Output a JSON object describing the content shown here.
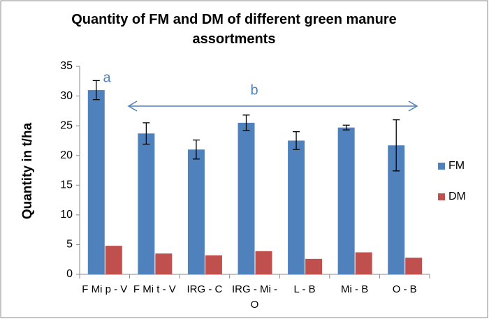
{
  "chart_data": {
    "type": "bar",
    "title": "Quantity of FM and DM of different green manure assortments",
    "ylabel": "Quantity in t/ha",
    "categories": [
      "F Mi p - V",
      "F Mi t - V",
      "IRG - C",
      "IRG - Mi - O",
      "L - B",
      "Mi - B",
      "O - B"
    ],
    "series": [
      {
        "name": "FM",
        "color": "#4f81bd",
        "values": [
          31,
          23.7,
          21,
          25.5,
          22.5,
          24.7,
          21.7
        ],
        "errors": [
          1.6,
          1.8,
          1.6,
          1.3,
          1.5,
          0.4,
          4.3
        ]
      },
      {
        "name": "DM",
        "color": "#c0504d",
        "values": [
          4.8,
          3.5,
          3.2,
          3.9,
          2.6,
          3.7,
          2.8
        ]
      }
    ],
    "annotations": [
      "a",
      "b"
    ],
    "ylim": [
      0,
      35
    ],
    "yticks": [
      0,
      5,
      10,
      15,
      20,
      25,
      30,
      35
    ],
    "grid": false,
    "legend": "right"
  }
}
